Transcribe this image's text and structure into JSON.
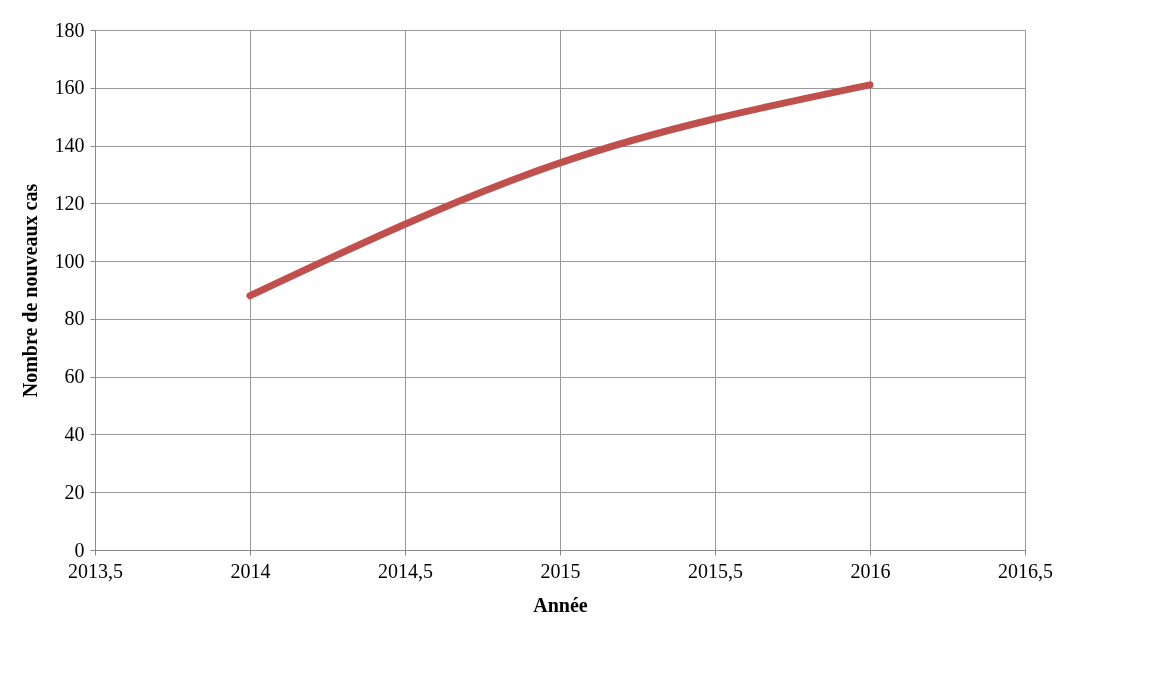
{
  "chart_data": {
    "type": "line",
    "xlabel": "Année",
    "ylabel": "Nombre de nouveaux cas",
    "x": [
      2014,
      2015,
      2016
    ],
    "series": [
      {
        "color": "#c0504d",
        "values": [
          88,
          134,
          161
        ]
      }
    ],
    "xlim": [
      2013.5,
      2016.5
    ],
    "xticks": [
      {
        "value": 2013.5,
        "label": "2013,5"
      },
      2014,
      {
        "value": 2014.5,
        "label": "2014,5"
      },
      2015,
      {
        "value": 2015.5,
        "label": "2015,5"
      },
      2016,
      {
        "value": 2016.5,
        "label": "2016,5"
      }
    ],
    "ylim": [
      0,
      180
    ],
    "yticks": [
      0,
      20,
      40,
      60,
      80,
      100,
      120,
      140,
      160,
      180
    ],
    "grid": true,
    "marker": "none",
    "line_style": "solid"
  }
}
